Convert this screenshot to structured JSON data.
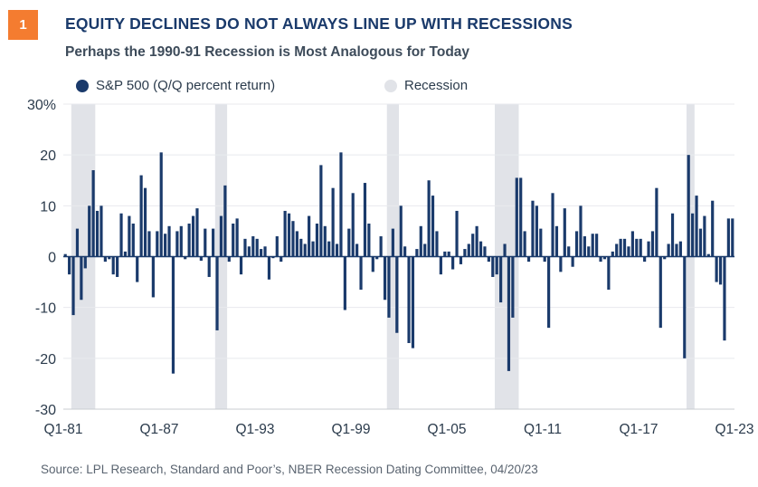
{
  "badge": "1",
  "title": "EQUITY DECLINES DO NOT ALWAYS LINE UP WITH RECESSIONS",
  "subtitle": "Perhaps the 1990-91 Recession is Most Analogous for Today",
  "source": "Source: LPL Research, Standard and Poor’s, NBER Recession Dating Committee, 04/20/23",
  "colors": {
    "bar": "#1a3a6b",
    "recession": "#e1e3e8",
    "badge": "#f47c30"
  },
  "chart_data": {
    "type": "bar",
    "title": "EQUITY DECLINES DO NOT ALWAYS LINE UP WITH RECESSIONS",
    "subtitle": "Perhaps the 1990-91 Recession is Most Analogous for Today",
    "xlabel": "",
    "ylabel": "",
    "ylim": [
      -30,
      30
    ],
    "yticks": [
      -30,
      -20,
      -10,
      0,
      10,
      20,
      30
    ],
    "ytick_labels": [
      "-30",
      "-20",
      "-10",
      "0",
      "10",
      "20",
      "30%"
    ],
    "xtick_labels": [
      "Q1-81",
      "Q1-87",
      "Q1-93",
      "Q1-99",
      "Q1-05",
      "Q1-11",
      "Q1-17",
      "Q1-23"
    ],
    "grid": "horizontal",
    "legend": [
      {
        "name": "S&P 500 (Q/Q percent return)",
        "marker": "circle",
        "color": "#1a3a6b"
      },
      {
        "name": "Recession",
        "marker": "circle",
        "color": "#e1e3e8"
      }
    ],
    "legend_position": "top-left",
    "recessions": [
      {
        "start": "Q3-81",
        "end": "Q4-82"
      },
      {
        "start": "Q3-90",
        "end": "Q1-91"
      },
      {
        "start": "Q2-01",
        "end": "Q4-01"
      },
      {
        "start": "Q1-08",
        "end": "Q2-09"
      },
      {
        "start": "Q1-20",
        "end": "Q2-20"
      }
    ],
    "series": [
      {
        "name": "S&P 500 (Q/Q percent return)",
        "start": "Q1-81",
        "values": [
          0.5,
          -3.5,
          -11.5,
          5.5,
          -8.5,
          -2.3,
          10,
          17,
          9,
          10,
          -1,
          -0.5,
          -3.5,
          -4,
          8.5,
          1,
          8,
          6.5,
          -5,
          16,
          13.5,
          5,
          -8,
          5,
          20.5,
          4.5,
          6,
          -23,
          5,
          6,
          -0.5,
          6.5,
          8,
          9.5,
          -0.8,
          5.5,
          -4,
          5.5,
          -14.5,
          8,
          14,
          -1,
          6.5,
          7.5,
          -3.5,
          3.5,
          2,
          4,
          3.5,
          1.5,
          2,
          -4.5,
          -0.3,
          4,
          -1,
          9,
          8.5,
          7,
          5,
          3.5,
          2.5,
          8,
          3,
          6.5,
          18,
          6,
          3,
          13.5,
          2.5,
          20.5,
          -10.5,
          5.5,
          12.5,
          2.5,
          -6.5,
          14.5,
          6.5,
          -3,
          -0.5,
          4,
          -8.5,
          -12,
          5.5,
          -15,
          10,
          2,
          -17,
          -18,
          1.5,
          6,
          2.5,
          15,
          12,
          5,
          -3.5,
          1,
          1,
          -2.5,
          9,
          -1.5,
          1.5,
          2.5,
          4.5,
          6,
          3,
          2,
          -1,
          -4,
          -3.5,
          -9,
          2.5,
          -22.5,
          -12,
          15.5,
          15.5,
          5,
          -1,
          11,
          10,
          5.5,
          -1,
          -14,
          12.5,
          6,
          -3,
          9.5,
          2,
          -2,
          5,
          10,
          4,
          2,
          4.5,
          4.5,
          -1,
          -0.5,
          -6.5,
          1,
          2.5,
          3.5,
          3.5,
          2,
          5,
          3.5,
          3.5,
          -1,
          3,
          5,
          13.5,
          -14,
          -0.5,
          2.5,
          8.5,
          2.5,
          3,
          -20,
          20,
          8.5,
          12,
          5.5,
          8,
          0.5,
          11,
          -5,
          -5.5,
          -16.5,
          7.5,
          7.5
        ]
      }
    ]
  }
}
